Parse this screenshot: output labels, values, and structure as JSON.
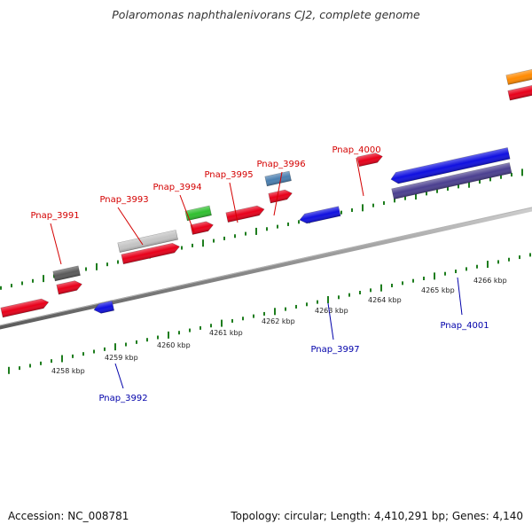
{
  "title": "Polaromonas naphthalenivorans CJ2, complete genome",
  "footer": {
    "accession": "Accession: NC_008781",
    "topology": "Topology: circular; Length: 4,410,291 bp; Genes: 4,140"
  },
  "colors": {
    "forward_label": "#d40000",
    "reverse_label": "#0000aa",
    "tick": "#1e7d1e",
    "backbone": "#8c8c8c"
  },
  "kbp_labels": [
    "4258 kbp",
    "4259 kbp",
    "4260 kbp",
    "4261 kbp",
    "4262 kbp",
    "4263 kbp",
    "4264 kbp",
    "4265 kbp",
    "4266 kbp"
  ],
  "gene_labels": [
    {
      "name": "Pnap_3991",
      "strand": "forward"
    },
    {
      "name": "Pnap_3993",
      "strand": "forward"
    },
    {
      "name": "Pnap_3994",
      "strand": "forward"
    },
    {
      "name": "Pnap_3995",
      "strand": "forward"
    },
    {
      "name": "Pnap_3996",
      "strand": "forward"
    },
    {
      "name": "Pnap_4000",
      "strand": "forward"
    },
    {
      "name": "Pnap_3992",
      "strand": "reverse"
    },
    {
      "name": "Pnap_3997",
      "strand": "reverse"
    },
    {
      "name": "Pnap_4001",
      "strand": "reverse"
    }
  ],
  "features": [
    {
      "color": "#e8001a",
      "strand": "forward"
    },
    {
      "color": "#e8001a",
      "strand": "forward"
    },
    {
      "color": "#e8001a",
      "strand": "forward"
    },
    {
      "color": "#e8001a",
      "strand": "forward"
    },
    {
      "color": "#e8001a",
      "strand": "forward"
    },
    {
      "color": "#e8001a",
      "strand": "forward"
    },
    {
      "color": "#e8001a",
      "strand": "forward"
    },
    {
      "color": "#e8001a",
      "strand": "forward"
    },
    {
      "color": "#5a5a5a",
      "strand": "forward"
    },
    {
      "color": "#c4c4c4",
      "strand": "forward"
    },
    {
      "color": "#2fbf2f",
      "strand": "forward"
    },
    {
      "color": "#4a7fb0",
      "strand": "forward"
    },
    {
      "color": "#ff8a00",
      "strand": "forward"
    },
    {
      "color": "#1010e0",
      "strand": "reverse"
    },
    {
      "color": "#1010e0",
      "strand": "reverse"
    },
    {
      "color": "#1010e0",
      "strand": "reverse"
    },
    {
      "color": "#4b3f90",
      "strand": "reverse"
    }
  ]
}
